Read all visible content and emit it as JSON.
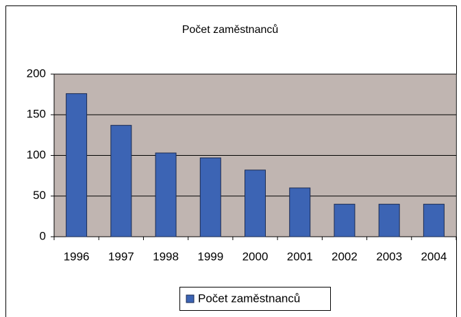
{
  "chart_data": {
    "type": "bar",
    "title": "Počet zaměstnanců",
    "categories": [
      "1996",
      "1997",
      "1998",
      "1999",
      "2000",
      "2001",
      "2002",
      "2003",
      "2004"
    ],
    "series": [
      {
        "name": "Počet zaměstnanců",
        "color": "#3c64b4",
        "values": [
          176,
          137,
          103,
          97,
          82,
          60,
          40,
          40,
          40
        ]
      }
    ],
    "ylim": [
      0,
      200
    ],
    "yticks": [
      0,
      50,
      100,
      150,
      200
    ],
    "grid": true,
    "legend": "bottom"
  }
}
